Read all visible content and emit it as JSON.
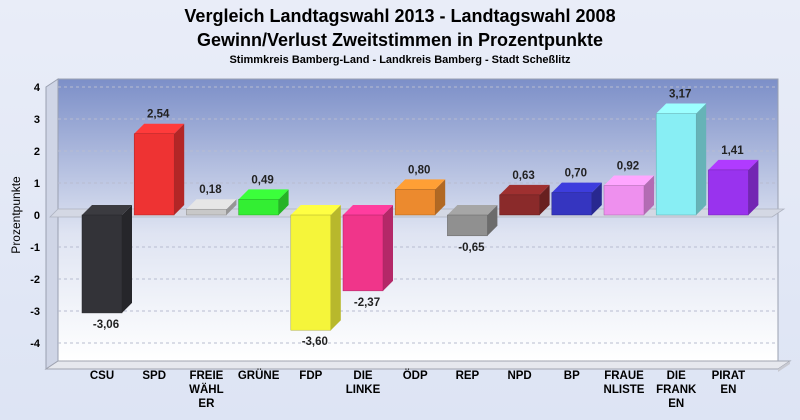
{
  "chart_data": {
    "type": "bar",
    "title": "Vergleich Landtagswahl 2013 - Landtagswahl 2008",
    "subtitle": "Gewinn/Verlust Zweitstimmen in Prozentpunkte",
    "subsubtitle": "Stimmkreis Bamberg-Land - Landkreis Bamberg - Stadt Scheßlitz",
    "xlabel": "",
    "ylabel": "Prozentpunkte",
    "ylim": [
      -4,
      4
    ],
    "yticks": [
      "4",
      "3",
      "2",
      "1",
      "0",
      "-1",
      "-2",
      "-3",
      "-4"
    ],
    "grid": true,
    "categories": [
      [
        "CSU"
      ],
      [
        "SPD"
      ],
      [
        "FREIE",
        "WÄHL",
        "ER"
      ],
      [
        "GRÜNE"
      ],
      [
        "FDP"
      ],
      [
        "DIE",
        "LINKE"
      ],
      [
        "ÖDP"
      ],
      [
        "REP"
      ],
      [
        "NPD"
      ],
      [
        "BP"
      ],
      [
        "FRAUE",
        "NLISTE"
      ],
      [
        "DIE",
        "FRANK",
        "EN"
      ],
      [
        "PIRAT",
        "EN"
      ]
    ],
    "values": [
      -3.06,
      2.54,
      0.18,
      0.49,
      -3.6,
      -2.37,
      0.8,
      -0.65,
      0.63,
      0.7,
      0.92,
      3.17,
      1.41
    ],
    "labels": [
      "-3,06",
      "2,54",
      "0,18",
      "0,49",
      "-3,60",
      "-2,37",
      "0,80",
      "-0,65",
      "0,63",
      "0,70",
      "0,92",
      "3,17",
      "1,41"
    ],
    "colors": [
      "#333338",
      "#ee3333",
      "#c8c8c8",
      "#33ee33",
      "#f5f53a",
      "#f0358a",
      "#ec8a2e",
      "#909090",
      "#8a2a2a",
      "#3535c0",
      "#ee90ee",
      "#88eef4",
      "#9933ee"
    ]
  }
}
